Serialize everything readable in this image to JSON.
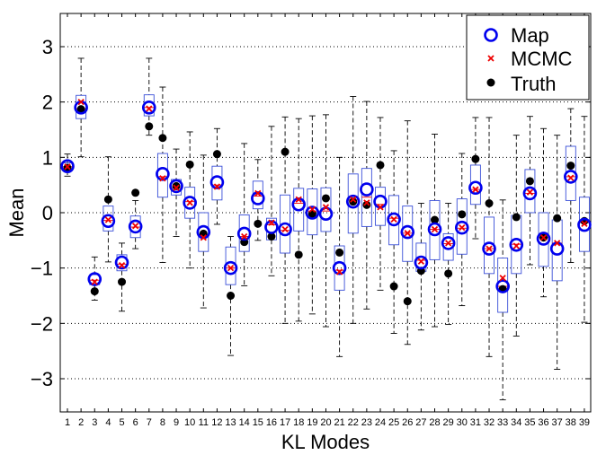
{
  "chart_data": {
    "type": "boxplot",
    "xlabel": "KL Modes",
    "ylabel": "Mean",
    "ylim": [
      -3.6,
      3.6
    ],
    "yticks": [
      -3,
      -2,
      -1,
      0,
      1,
      2,
      3
    ],
    "ytick_labels": [
      "−3",
      "−2",
      "−1",
      "0",
      "1",
      "2",
      "3"
    ],
    "grid": "dotted horizontal",
    "legend_position": "top-right",
    "legend": [
      {
        "label": "Map",
        "marker": "blue-circle"
      },
      {
        "label": "MCMC",
        "marker": "red-x"
      },
      {
        "label": "Truth",
        "marker": "black-dot"
      }
    ],
    "colors": {
      "map": "#0000ee",
      "mcmc": "#ee0000",
      "truth": "#000000",
      "box": "#3a4fd8",
      "whisker": "#000000"
    },
    "categories": [
      "1",
      "2",
      "3",
      "4",
      "5",
      "6",
      "7",
      "8",
      "9",
      "10",
      "11",
      "12",
      "13",
      "14",
      "15",
      "16",
      "17",
      "18",
      "19",
      "20",
      "21",
      "22",
      "23",
      "24",
      "25",
      "26",
      "27",
      "28",
      "29",
      "30",
      "31",
      "32",
      "33",
      "34",
      "35",
      "36",
      "37",
      "38",
      "39"
    ],
    "series": [
      {
        "name": "Map",
        "values": [
          0.84,
          1.9,
          -1.2,
          -0.15,
          -0.9,
          -0.25,
          1.9,
          0.7,
          0.48,
          0.18,
          -0.35,
          0.55,
          -1.0,
          -0.38,
          0.26,
          -0.26,
          -0.3,
          0.15,
          0.0,
          -0.02,
          -1.0,
          0.2,
          0.42,
          0.2,
          -0.12,
          -0.35,
          -0.9,
          -0.3,
          -0.55,
          -0.27,
          0.45,
          -0.65,
          -1.33,
          -0.58,
          0.35,
          -0.47,
          -0.65,
          0.65,
          -0.22
        ]
      },
      {
        "name": "MCMC",
        "values": [
          0.83,
          2.0,
          -1.25,
          -0.13,
          -0.95,
          -0.24,
          1.88,
          0.62,
          0.45,
          0.18,
          -0.45,
          0.47,
          -1.0,
          -0.43,
          0.35,
          -0.18,
          -0.3,
          0.24,
          0.06,
          0.1,
          -1.07,
          0.24,
          0.18,
          0.1,
          -0.12,
          -0.37,
          -0.88,
          -0.3,
          -0.55,
          -0.27,
          0.42,
          -0.65,
          -1.18,
          -0.6,
          0.37,
          -0.45,
          -0.55,
          0.63,
          -0.2
        ]
      },
      {
        "name": "Truth",
        "values": [
          0.81,
          1.87,
          -1.42,
          0.24,
          -1.25,
          0.36,
          1.56,
          1.35,
          0.48,
          0.87,
          -0.38,
          1.06,
          -1.5,
          -0.53,
          -0.2,
          -0.43,
          1.1,
          -0.76,
          -0.02,
          0.26,
          -0.72,
          0.2,
          0.14,
          0.86,
          -1.33,
          -1.6,
          -1.05,
          -0.13,
          -1.1,
          -0.03,
          0.97,
          0.17,
          -1.38,
          -0.08,
          0.57,
          -0.45,
          -0.1,
          0.85,
          -0.15
        ]
      }
    ],
    "box_stats": [
      [
        0.66,
        0.76,
        0.83,
        0.9,
        1.06
      ],
      [
        1.01,
        1.7,
        1.88,
        2.12,
        2.79
      ],
      [
        -1.58,
        -1.3,
        -1.22,
        -1.12,
        -0.8
      ],
      [
        -0.89,
        -0.33,
        -0.14,
        0.12,
        1.01
      ],
      [
        -1.78,
        -1.05,
        -0.93,
        -0.76,
        -0.55
      ],
      [
        -0.65,
        -0.45,
        -0.26,
        -0.06,
        0.22
      ],
      [
        1.4,
        1.75,
        1.9,
        2.13,
        2.79
      ],
      [
        -0.9,
        0.28,
        0.65,
        1.07,
        2.27
      ],
      [
        -0.43,
        0.32,
        0.45,
        0.6,
        1.15
      ],
      [
        -1.0,
        -0.1,
        0.2,
        0.46,
        1.46
      ],
      [
        -1.72,
        -0.7,
        -0.42,
        0.0,
        1.04
      ],
      [
        -0.21,
        0.23,
        0.5,
        0.84,
        1.52
      ],
      [
        -2.58,
        -1.3,
        -1.0,
        -0.62,
        -0.43
      ],
      [
        -1.32,
        -0.7,
        -0.43,
        -0.04,
        1.25
      ],
      [
        -0.5,
        0.07,
        0.3,
        0.57,
        0.96
      ],
      [
        -1.14,
        -0.49,
        -0.22,
        -0.1,
        1.56
      ],
      [
        -2.0,
        -0.73,
        -0.32,
        0.32,
        1.73
      ],
      [
        -1.96,
        -0.33,
        0.17,
        0.44,
        1.7
      ],
      [
        -1.83,
        -0.4,
        0.03,
        0.43,
        1.75
      ],
      [
        -2.06,
        -0.34,
        0.03,
        0.45,
        1.77
      ],
      [
        -2.6,
        -1.4,
        -1.04,
        -0.6,
        1.0
      ],
      [
        -2.0,
        -0.37,
        0.23,
        0.7,
        2.1
      ],
      [
        -1.74,
        -0.25,
        0.28,
        0.8,
        2.01
      ],
      [
        -1.4,
        -0.23,
        0.15,
        0.46,
        1.72
      ],
      [
        -2.18,
        -0.58,
        -0.1,
        0.31,
        1.12
      ],
      [
        -2.38,
        -0.88,
        -0.37,
        0.12,
        1.66
      ],
      [
        -2.12,
        -1.06,
        -0.86,
        -0.55,
        0.17
      ],
      [
        -2.06,
        -0.85,
        -0.3,
        0.22,
        1.42
      ],
      [
        -2.02,
        -0.86,
        -0.56,
        -0.38,
        0.17
      ],
      [
        -1.68,
        -0.75,
        -0.28,
        0.25,
        1.07
      ],
      [
        -0.47,
        0.15,
        0.42,
        0.86,
        1.72
      ],
      [
        -2.6,
        -1.1,
        -0.65,
        -0.08,
        1.72
      ],
      [
        -3.38,
        -1.8,
        -1.33,
        -0.82,
        0.23
      ],
      [
        -2.23,
        -1.1,
        -0.57,
        -0.05,
        1.4
      ],
      [
        -0.94,
        0.0,
        0.35,
        0.78,
        1.74
      ],
      [
        -1.52,
        -0.97,
        -0.45,
        0.0,
        1.52
      ],
      [
        -2.83,
        -1.23,
        -0.55,
        -0.13,
        1.4
      ],
      [
        -0.9,
        0.22,
        0.65,
        1.2,
        1.88
      ],
      [
        -1.98,
        -0.7,
        -0.18,
        0.28,
        1.74
      ]
    ]
  }
}
